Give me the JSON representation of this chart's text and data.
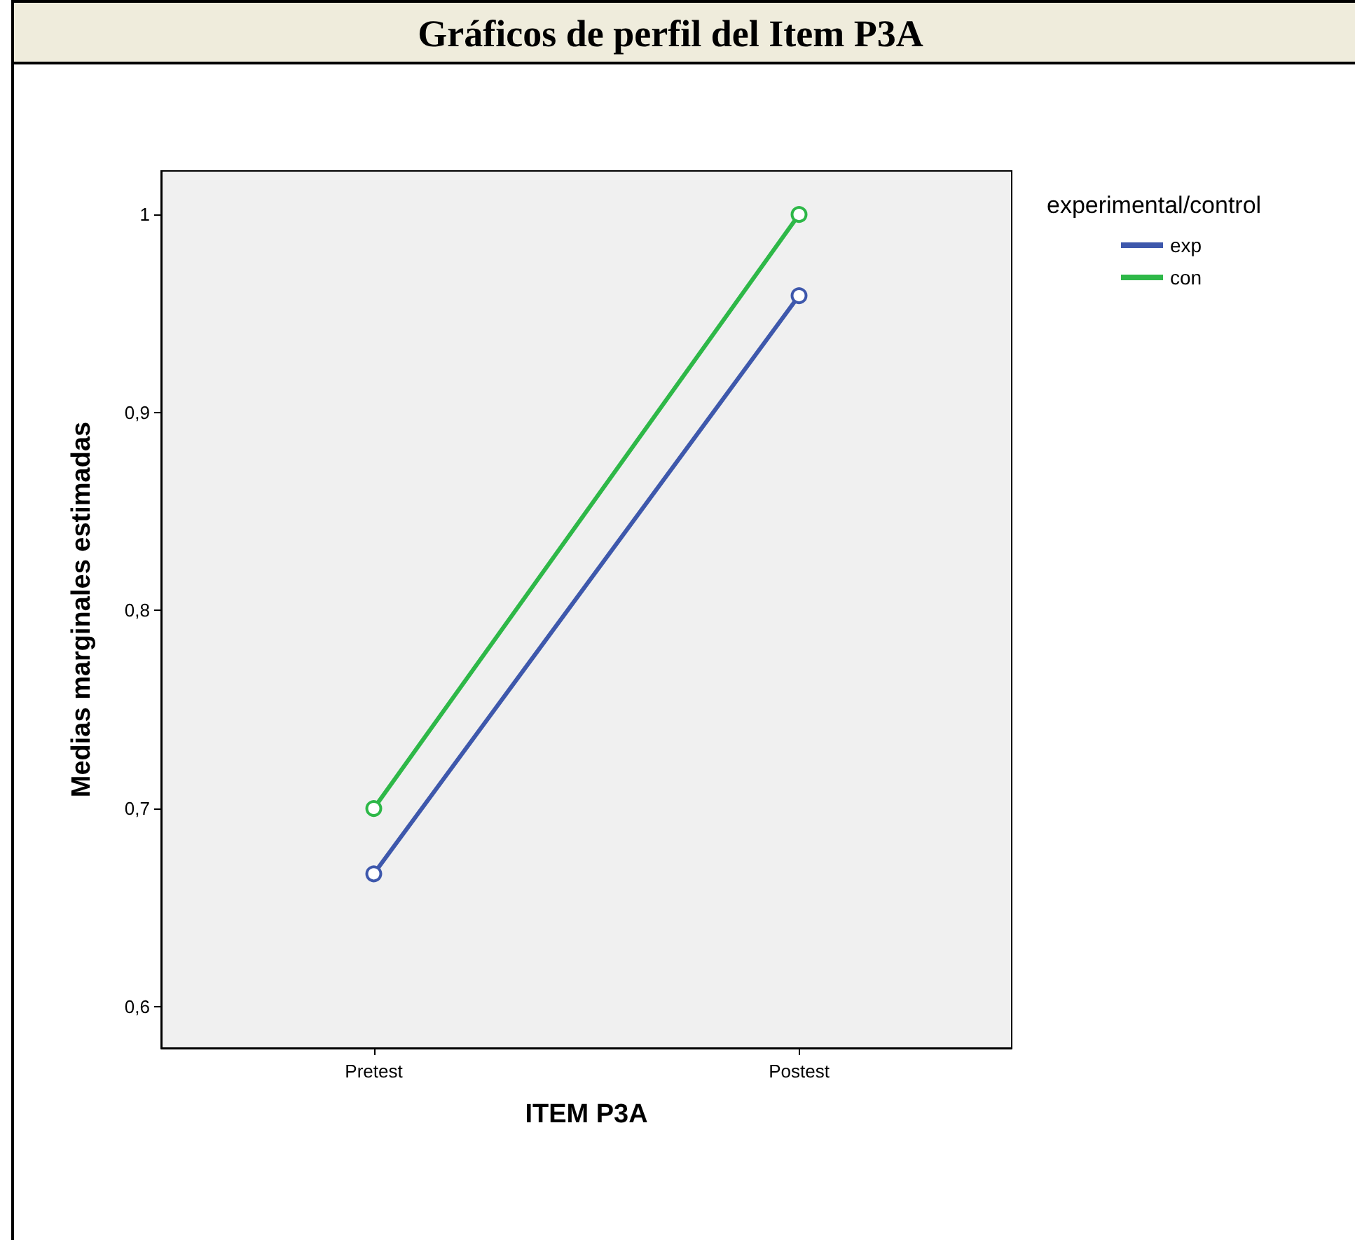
{
  "chart_data": {
    "type": "line",
    "title": "Gráficos de perfil del Item P3A",
    "xlabel": "ITEM P3A",
    "ylabel": "Medias marginales estimadas",
    "legend_title": "experimental/control",
    "categories": [
      "Pretest",
      "Postest"
    ],
    "series": [
      {
        "name": "exp",
        "color": "#3e58ac",
        "values": [
          0.667,
          0.959
        ]
      },
      {
        "name": "con",
        "color": "#2eb848",
        "values": [
          0.7,
          1.0
        ]
      }
    ],
    "ylim": [
      0.579,
      1.022
    ],
    "yticks": [
      {
        "value": 0.6,
        "label": "0,6"
      },
      {
        "value": 0.7,
        "label": "0,7"
      },
      {
        "value": 0.8,
        "label": "0,8"
      },
      {
        "value": 0.9,
        "label": "0,9"
      },
      {
        "value": 1.0,
        "label": "1"
      }
    ],
    "grid": false,
    "legend": "top right",
    "marker": "circle",
    "line_style": "solid"
  }
}
